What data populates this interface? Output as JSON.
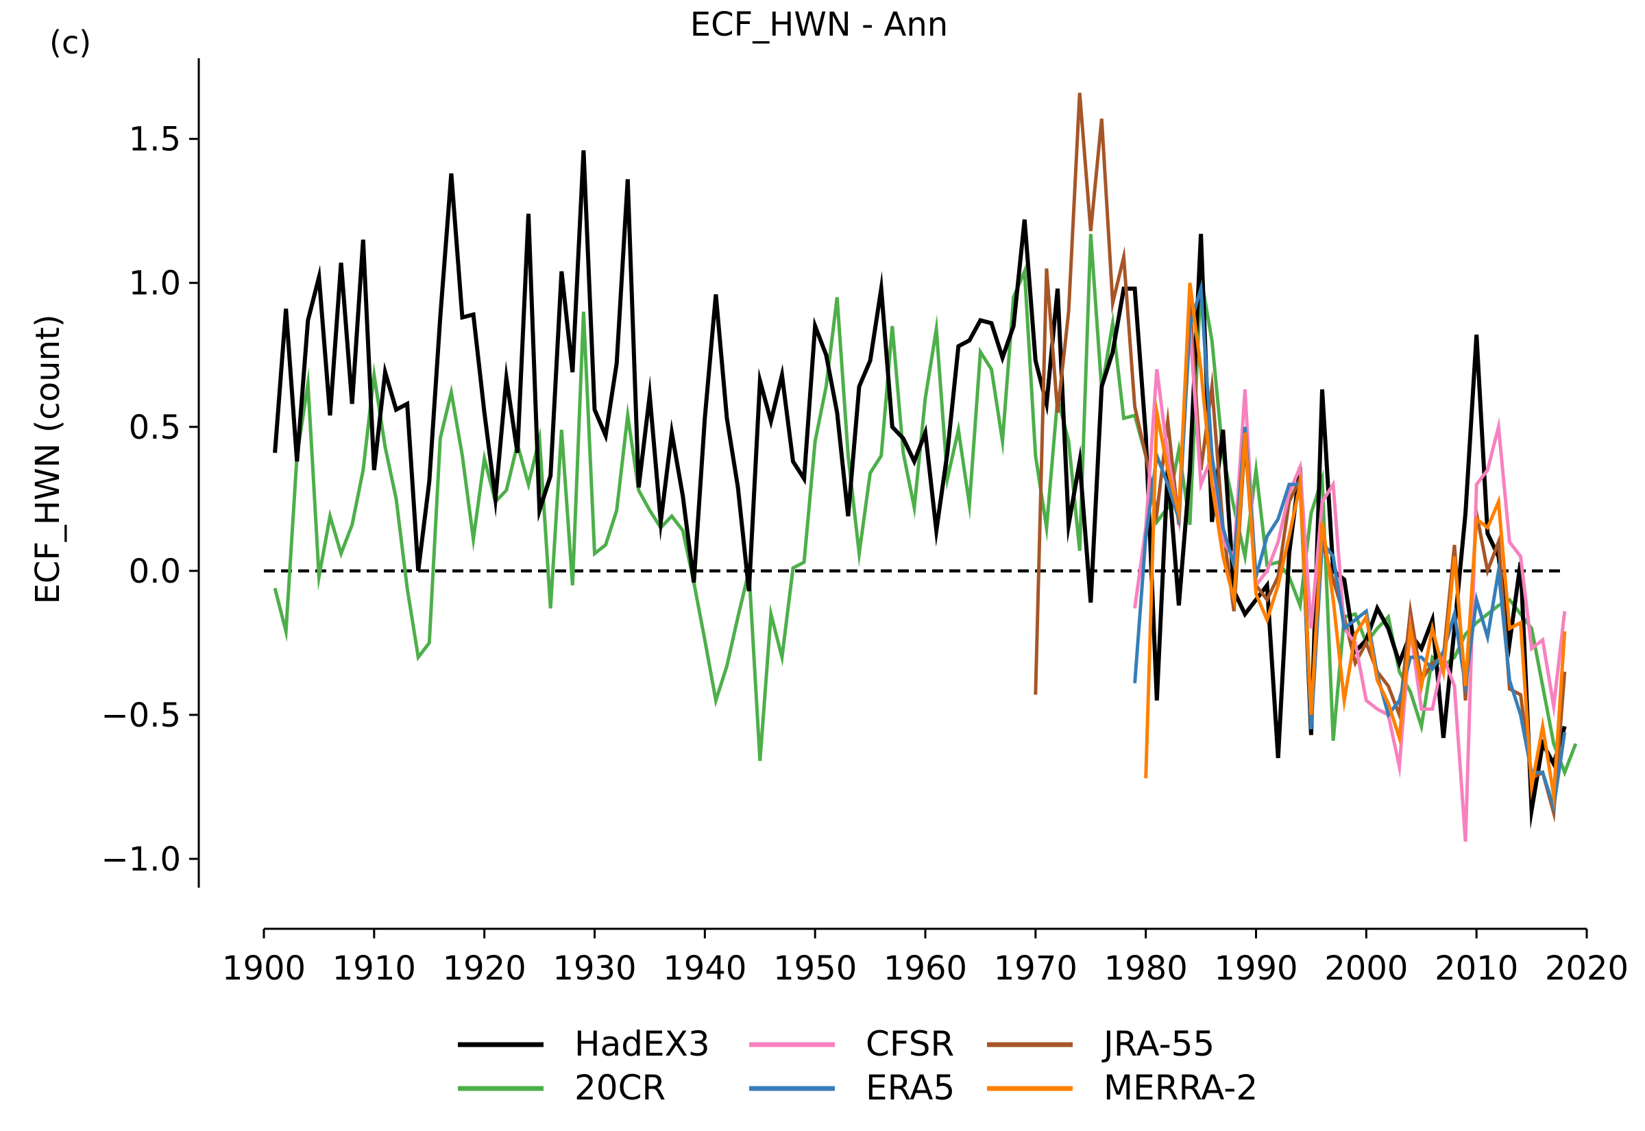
{
  "panel_label": "(c)",
  "chart_data": {
    "type": "line",
    "title": "ECF_HWN - Ann",
    "xlabel": "",
    "ylabel": "ECF_HWN (count)",
    "xlim": [
      1900,
      2020
    ],
    "ylim": [
      -1.1,
      1.78
    ],
    "xticks": [
      1900,
      1910,
      1920,
      1930,
      1940,
      1950,
      1960,
      1970,
      1980,
      1990,
      2000,
      2010,
      2020
    ],
    "yticks": [
      -1.0,
      -0.5,
      0.0,
      0.5,
      1.0,
      1.5
    ],
    "ytick_labels": [
      "−1.0",
      "−0.5",
      "0.0",
      "0.5",
      "1.0",
      "1.5"
    ],
    "grid": false,
    "reference_line": {
      "y": 0.0,
      "style": "dashed",
      "color": "#000000"
    },
    "legend": {
      "placement": "bottom-center",
      "ncol": 3
    },
    "series": [
      {
        "name": "20CR",
        "color": "#4daf4a",
        "x_start": 1901,
        "values": [
          -0.06,
          -0.21,
          0.4,
          0.65,
          -0.02,
          0.19,
          0.06,
          0.16,
          0.35,
          0.68,
          0.43,
          0.25,
          -0.06,
          -0.3,
          -0.25,
          0.46,
          0.62,
          0.4,
          0.11,
          0.39,
          0.24,
          0.28,
          0.44,
          0.3,
          0.46,
          -0.13,
          0.49,
          -0.05,
          0.9,
          0.06,
          0.09,
          0.21,
          0.54,
          0.28,
          0.21,
          0.15,
          0.19,
          0.14,
          -0.04,
          -0.24,
          -0.45,
          -0.33,
          -0.16,
          0.0,
          -0.66,
          -0.15,
          -0.3,
          0.01,
          0.03,
          0.45,
          0.64,
          0.95,
          0.4,
          0.06,
          0.34,
          0.4,
          0.85,
          0.41,
          0.22,
          0.6,
          0.84,
          0.32,
          0.49,
          0.23,
          0.76,
          0.7,
          0.45,
          0.95,
          1.04,
          0.4,
          0.15,
          0.6,
          0.45,
          0.07,
          1.17,
          0.63,
          0.86,
          0.53,
          0.54,
          0.4,
          0.17,
          0.22,
          0.42,
          0.16,
          1.02,
          0.8,
          0.4,
          0.22,
          0.05,
          0.35,
          0.02,
          0.03,
          -0.02,
          -0.12,
          0.2,
          0.32,
          -0.59,
          -0.16,
          -0.15,
          -0.25,
          -0.2,
          -0.16,
          -0.35,
          -0.42,
          -0.54,
          -0.3,
          -0.33,
          -0.3,
          -0.22,
          -0.18,
          -0.15,
          -0.12,
          -0.1,
          -0.15,
          -0.2,
          -0.4,
          -0.6,
          -0.7,
          -0.6
        ]
      },
      {
        "name": "HadEX3",
        "color": "#000000",
        "x_start": 1901,
        "values": [
          0.41,
          0.91,
          0.38,
          0.87,
          1.02,
          0.54,
          1.07,
          0.58,
          1.15,
          0.35,
          0.69,
          0.56,
          0.58,
          0.0,
          0.31,
          0.88,
          1.38,
          0.88,
          0.89,
          0.55,
          0.25,
          0.67,
          0.41,
          1.24,
          0.21,
          0.33,
          1.04,
          0.69,
          1.46,
          0.56,
          0.47,
          0.72,
          1.36,
          0.29,
          0.61,
          0.17,
          0.48,
          0.26,
          -0.04,
          0.53,
          0.96,
          0.53,
          0.29,
          -0.07,
          0.66,
          0.52,
          0.68,
          0.38,
          0.32,
          0.85,
          0.75,
          0.55,
          0.19,
          0.64,
          0.73,
          0.98,
          0.5,
          0.46,
          0.38,
          0.48,
          0.14,
          0.41,
          0.78,
          0.8,
          0.87,
          0.86,
          0.74,
          0.85,
          1.22,
          0.73,
          0.58,
          0.98,
          0.16,
          0.38,
          -0.11,
          0.64,
          0.76,
          0.98,
          0.98,
          0.47,
          -0.45,
          0.36,
          -0.12,
          0.35,
          1.17,
          0.17,
          0.49,
          -0.07,
          -0.15,
          -0.1,
          -0.05,
          -0.65,
          0.06,
          0.36,
          -0.57,
          0.63,
          0.0,
          -0.03,
          -0.28,
          -0.24,
          -0.13,
          -0.2,
          -0.32,
          -0.22,
          -0.27,
          -0.17,
          -0.58,
          -0.2,
          0.2,
          0.82,
          0.13,
          0.05,
          -0.25,
          0.03,
          -0.83,
          -0.6,
          -0.67,
          -0.54
        ]
      },
      {
        "name": "JRA-55",
        "color": "#a65628",
        "x_start": 1970,
        "values": [
          -0.43,
          1.05,
          0.55,
          0.9,
          1.66,
          1.18,
          1.57,
          0.93,
          1.09,
          0.57,
          0.4,
          0.2,
          0.52,
          0.16,
          0.93,
          0.35,
          0.64,
          0.15,
          -0.14,
          0.45,
          -0.05,
          -0.1,
          -0.02,
          0.24,
          0.32,
          -0.54,
          0.1,
          -0.03,
          -0.16,
          -0.32,
          -0.25,
          -0.35,
          -0.4,
          -0.5,
          -0.14,
          -0.38,
          -0.32,
          -0.3,
          0.09,
          -0.45,
          0.2,
          0.0,
          0.1,
          -0.41,
          -0.43,
          -0.72,
          -0.7,
          -0.84,
          -0.35
        ]
      },
      {
        "name": "CFSR",
        "color": "#f781bf",
        "x_start": 1979,
        "values": [
          -0.13,
          0.15,
          0.7,
          0.4,
          0.18,
          0.85,
          0.3,
          0.4,
          0.1,
          0.05,
          0.63,
          -0.05,
          0.0,
          0.1,
          0.27,
          0.36,
          -0.2,
          0.24,
          0.3,
          -0.2,
          -0.25,
          -0.45,
          -0.48,
          -0.5,
          -0.68,
          -0.2,
          -0.48,
          -0.48,
          -0.3,
          -0.4,
          -0.94,
          0.3,
          0.35,
          0.5,
          0.1,
          0.05,
          -0.27,
          -0.24,
          -0.47,
          -0.14
        ]
      },
      {
        "name": "ERA5",
        "color": "#377eb8",
        "x_start": 1979,
        "values": [
          -0.39,
          0.12,
          0.4,
          0.3,
          0.18,
          0.85,
          0.98,
          0.4,
          0.15,
          0.02,
          0.5,
          -0.02,
          0.12,
          0.18,
          0.3,
          0.3,
          -0.55,
          0.1,
          0.05,
          -0.2,
          -0.17,
          -0.14,
          -0.36,
          -0.5,
          -0.45,
          -0.3,
          -0.3,
          -0.34,
          -0.28,
          -0.15,
          -0.4,
          -0.1,
          -0.23,
          0.0,
          -0.38,
          -0.5,
          -0.7,
          -0.7,
          -0.82,
          -0.56
        ]
      },
      {
        "name": "MERRA-2",
        "color": "#ff7f00",
        "x_start": 1980,
        "values": [
          -0.72,
          0.55,
          0.35,
          0.2,
          1.0,
          0.7,
          0.3,
          0.05,
          -0.1,
          0.48,
          -0.08,
          -0.17,
          -0.05,
          0.12,
          0.3,
          -0.5,
          0.17,
          -0.1,
          -0.45,
          -0.22,
          -0.16,
          -0.38,
          -0.46,
          -0.58,
          -0.2,
          -0.4,
          -0.2,
          -0.35,
          0.05,
          -0.4,
          0.18,
          0.15,
          0.24,
          -0.2,
          -0.18,
          -0.75,
          -0.54,
          -0.78,
          -0.21
        ]
      }
    ],
    "legend_order": [
      "HadEX3",
      "20CR",
      "CFSR",
      "ERA5",
      "JRA-55",
      "MERRA-2"
    ]
  }
}
